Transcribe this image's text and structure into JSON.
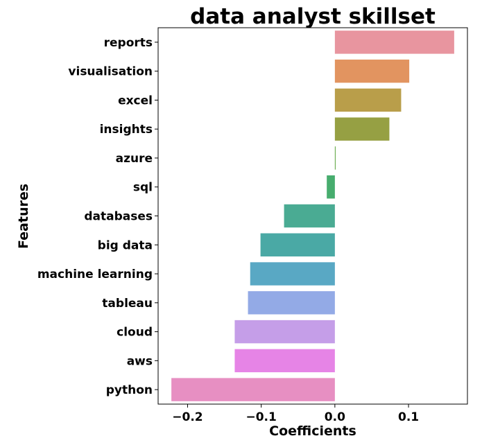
{
  "chart_data": {
    "type": "bar",
    "orientation": "horizontal",
    "title": "data analyst skillset",
    "xlabel": "Coefficients",
    "ylabel": "Features",
    "categories": [
      "reports",
      "visualisation",
      "excel",
      "insights",
      "azure",
      "sql",
      "databases",
      "big data",
      "machine learning",
      "tableau",
      "cloud",
      "aws",
      "python"
    ],
    "values": [
      0.162,
      0.101,
      0.09,
      0.074,
      0.001,
      -0.011,
      -0.069,
      -0.101,
      -0.115,
      -0.118,
      -0.136,
      -0.136,
      -0.222
    ],
    "colors": [
      "#e8959f",
      "#e29460",
      "#b99e4a",
      "#96a043",
      "#60a743",
      "#47ad6e",
      "#4aab93",
      "#4aa9a5",
      "#59a8c4",
      "#93aae6",
      "#c59ee8",
      "#e684e6",
      "#e78fc2"
    ],
    "xlim": [
      -0.24,
      0.18
    ],
    "xticks": [
      -0.2,
      -0.1,
      0.0,
      0.1
    ],
    "xtick_labels": [
      "−0.2",
      "−0.1",
      "0.0",
      "0.1"
    ],
    "grid": false,
    "legend": "none"
  }
}
